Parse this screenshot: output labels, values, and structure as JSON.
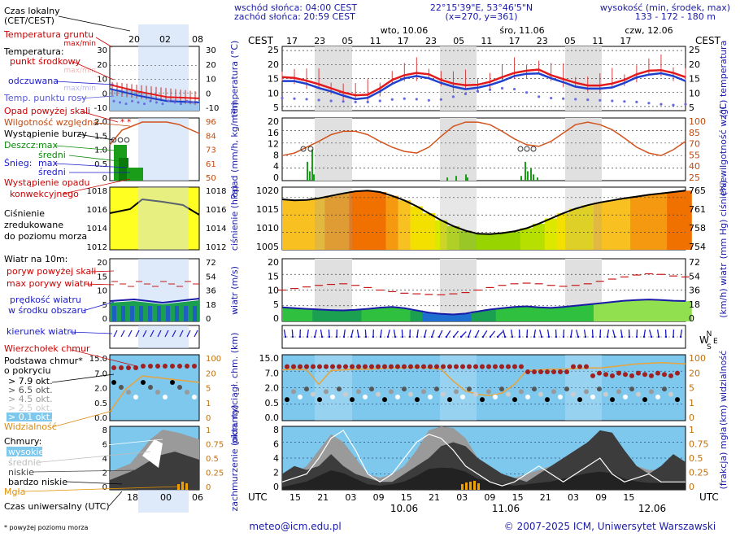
{
  "header": {
    "sunrise": "wschód słońca: 04:00 CEST",
    "sunset": "zachód słońca: 20:59 CEST",
    "coords": "22°15'39\"E, 53°46'5\"N",
    "grid": "(x=270, y=361)",
    "altitude_label": "wysokość (min, środek, max)",
    "altitude_values": "133 - 172 - 180 m"
  },
  "legend": {
    "local_time": "Czas lokalny",
    "local_time_zone": "(CET/CEST)",
    "local_ticks": [
      "20",
      "02",
      "08"
    ],
    "ground_temp": "Temperatura gruntu",
    "ground_temp_sub": "max/min",
    "temperature": "Temperatura:",
    "mid_point": "punkt środkowy",
    "max_min": "max/min",
    "felt": "odczuwana",
    "felt_sub": "max/min",
    "dew_point": "Temp. punktu rosy",
    "precip_above": "Opad powyżej skali",
    "humidity": "Wilgotność względna",
    "storm": "Wystąpienie burzy",
    "rain": "Deszcz:",
    "rain_max": "max",
    "rain_mean": "średni",
    "snow": "Śnieg:",
    "snow_max": "max",
    "snow_mean": "średni",
    "conv_precip_1": "Wystąpienie opadu",
    "conv_precip_2": "konwekcyjnego",
    "pressure_1": "Ciśnienie",
    "pressure_2": "zredukowane",
    "pressure_3": "do poziomu morza",
    "wind_at": "Wiatr na 10m:",
    "gust_above": "poryw powyżej skali",
    "gust_max": "max porywy wiatru",
    "wind_speed_1": "prędkość wiatru",
    "wind_speed_2": "w środku obszaru",
    "wind_dir": "kierunek wiatru",
    "cloud_top": "Wierzchołek chmur",
    "cloud_base_1": "Podstawa chmur*",
    "cloud_base_2": "o pokryciu",
    "cov": [
      "> 7.9 okt.",
      "> 6.5 okt.",
      "> 4.5 okt.",
      "> 2.5 okt.",
      "> 0.1 okt."
    ],
    "visibility": "Widzialność",
    "clouds": "Chmury:",
    "high": "wysokie",
    "mid": "średnie",
    "low": "niskie",
    "very_low": "bardzo niskie",
    "fog": "Mgła",
    "utc": "Czas uniwersalny (UTC)",
    "utc_ticks": [
      "18",
      "00",
      "06"
    ],
    "footnote": "* powyżej poziomu morza",
    "mini_ticks": {
      "temp_left": [
        "30",
        "20",
        "10",
        "0",
        "-10"
      ],
      "temp_right": [
        "30",
        "20",
        "10",
        "0",
        "-10"
      ],
      "prec_left": [
        "2.0",
        "1.5",
        "1.0",
        "0.5",
        "0"
      ],
      "prec_right": [
        "96",
        "84",
        "73",
        "61",
        "50"
      ],
      "press_left": [
        "1018",
        "1016",
        "1014",
        "1012"
      ],
      "press_right": [
        "1018",
        "1016",
        "1014",
        "1012"
      ],
      "wind_left": [
        "20",
        "15",
        "10",
        "5",
        "0"
      ],
      "wind_right": [
        "72",
        "54",
        "36",
        "18",
        "0"
      ],
      "cloud_left": [
        "15.0",
        "7.0",
        "2.0",
        "0.5",
        "0.0"
      ],
      "cloud_right": [
        "100",
        "20",
        "5",
        "1",
        "0"
      ],
      "cov_left": [
        "8",
        "6",
        "4",
        "2",
        "0"
      ],
      "cov_right": [
        "1",
        "0.75",
        "0.5",
        "0.25",
        "0"
      ]
    }
  },
  "main": {
    "cest": "CEST",
    "utc": "UTC",
    "top_hours": [
      "17",
      "23",
      "05",
      "11",
      "17",
      "23",
      "05",
      "11",
      "17",
      "23",
      "05",
      "11",
      "17"
    ],
    "bottom_hours": [
      "15",
      "21",
      "03",
      "09",
      "15",
      "21",
      "03",
      "09",
      "15",
      "21",
      "03",
      "09",
      "15"
    ],
    "day_labels": [
      "wto, 10.06",
      "śro, 11.06",
      "czw, 12.06"
    ],
    "bottom_dates": [
      "10.06",
      "11.06",
      "12.06"
    ],
    "y_labels": {
      "temp": "temperatura (°C)",
      "temp_r": "(°C) temperatura",
      "prec": "opad (mm/h, kg/m²h)",
      "prec_r": "(%) wilgotność wzgl.",
      "press": "ciśnienie (hPa)",
      "press_r": "(mm Hg) ciśnienie",
      "wind": "wiatr (m/s)",
      "wind_r": "(km/h) wiatr",
      "cloud": "pion. rozciągł. chm. (km)",
      "cloud_r": "(km) widzialność",
      "cov": "zachmurzenie (oktanty)",
      "cov_r": "(frakcja) mgła"
    },
    "compass": {
      "n": "N",
      "s": "S",
      "w": "W",
      "e": "E"
    },
    "ticks": {
      "temp_left": [
        "25",
        "20",
        "15",
        "10",
        "5"
      ],
      "temp_right": [
        "25",
        "20",
        "15",
        "10",
        "5"
      ],
      "prec_left": [
        "20",
        "16",
        "12",
        "8",
        "4",
        "0"
      ],
      "prec_right": [
        "100",
        "85",
        "70",
        "55",
        "40",
        "25"
      ],
      "press_left": [
        "1020",
        "1015",
        "1010",
        "1005"
      ],
      "press_right": [
        "765",
        "761",
        "758",
        "754"
      ],
      "wind_left": [
        "20",
        "15",
        "10",
        "5",
        "0"
      ],
      "wind_right": [
        "72",
        "54",
        "36",
        "18",
        "0"
      ],
      "cloud_left": [
        "15.0",
        "7.0",
        "2.0",
        "0.5",
        "0.0"
      ],
      "cloud_right": [
        "100",
        "20",
        "5",
        "1",
        "0"
      ],
      "cov_left": [
        "8",
        "6",
        "4",
        "2",
        "0"
      ],
      "cov_right": [
        "1",
        "0.75",
        "0.5",
        "0.25",
        "0"
      ]
    }
  },
  "footer": {
    "email": "meteo@icm.edu.pl",
    "copyright": "© 2007-2025 ICM, Uniwersytet Warszawski"
  },
  "colors": {
    "temp_mid": "#e31a1c",
    "felt": "#1f3fcf",
    "dew": "#6a6adf",
    "humidity": "#d2531e",
    "rain": "#1a9e1a",
    "pressure_line": "#000000",
    "wind_fill": "#1f9e3a",
    "gust": "#c81a1a",
    "cloud_sky": "#7ec8ee",
    "visibility": "#e8a33a",
    "fog": "#f0a000"
  },
  "chart_data": [
    {
      "type": "line",
      "name": "temperature",
      "x_hours_utc": [
        0,
        6,
        12,
        18,
        24,
        30,
        36,
        42,
        48,
        54
      ],
      "series": [
        {
          "name": "punkt środkowy",
          "values": [
            15.5,
            12.5,
            9,
            16,
            17,
            12.5,
            14,
            18,
            13.5,
            15
          ]
        },
        {
          "name": "odczuwana",
          "values": [
            14.5,
            11,
            7,
            15,
            16,
            11,
            13,
            17,
            12,
            13.5
          ]
        },
        {
          "name": "Temp. punktu rosy",
          "values": [
            8,
            7.5,
            7,
            6.5,
            7,
            9.5,
            11,
            8,
            7,
            5.5
          ]
        }
      ],
      "ylim": [
        5,
        25
      ]
    },
    {
      "type": "line",
      "name": "precipitation_humidity",
      "series": [
        {
          "name": "Wilgotność względna",
          "values": [
            55,
            72,
            84,
            80,
            58,
            78,
            92,
            70,
            88,
            70
          ]
        }
      ],
      "ylim_left": [
        0,
        20
      ],
      "ylim_right": [
        25,
        100
      ]
    },
    {
      "type": "area",
      "name": "pressure",
      "x_hours_utc": [
        0,
        6,
        12,
        18,
        24,
        30,
        36,
        42,
        48,
        54
      ],
      "series": [
        {
          "name": "ciśnienie",
          "values": [
            1019.5,
            1021.5,
            1022,
            1020,
            1013,
            1009.5,
            1011,
            1016,
            1020,
            1022
          ]
        }
      ],
      "ylim": [
        1005,
        1023
      ]
    },
    {
      "type": "area",
      "name": "wind",
      "series": [
        {
          "name": "prędkość wiatru",
          "values": [
            4.5,
            4,
            3.5,
            4.5,
            3,
            2.5,
            4,
            4.5,
            5,
            6.5
          ]
        },
        {
          "name": "max porywy wiatru",
          "values": [
            10,
            11,
            12,
            10,
            8,
            9,
            11,
            12,
            14,
            15
          ]
        }
      ],
      "ylim": [
        0,
        20
      ]
    }
  ]
}
